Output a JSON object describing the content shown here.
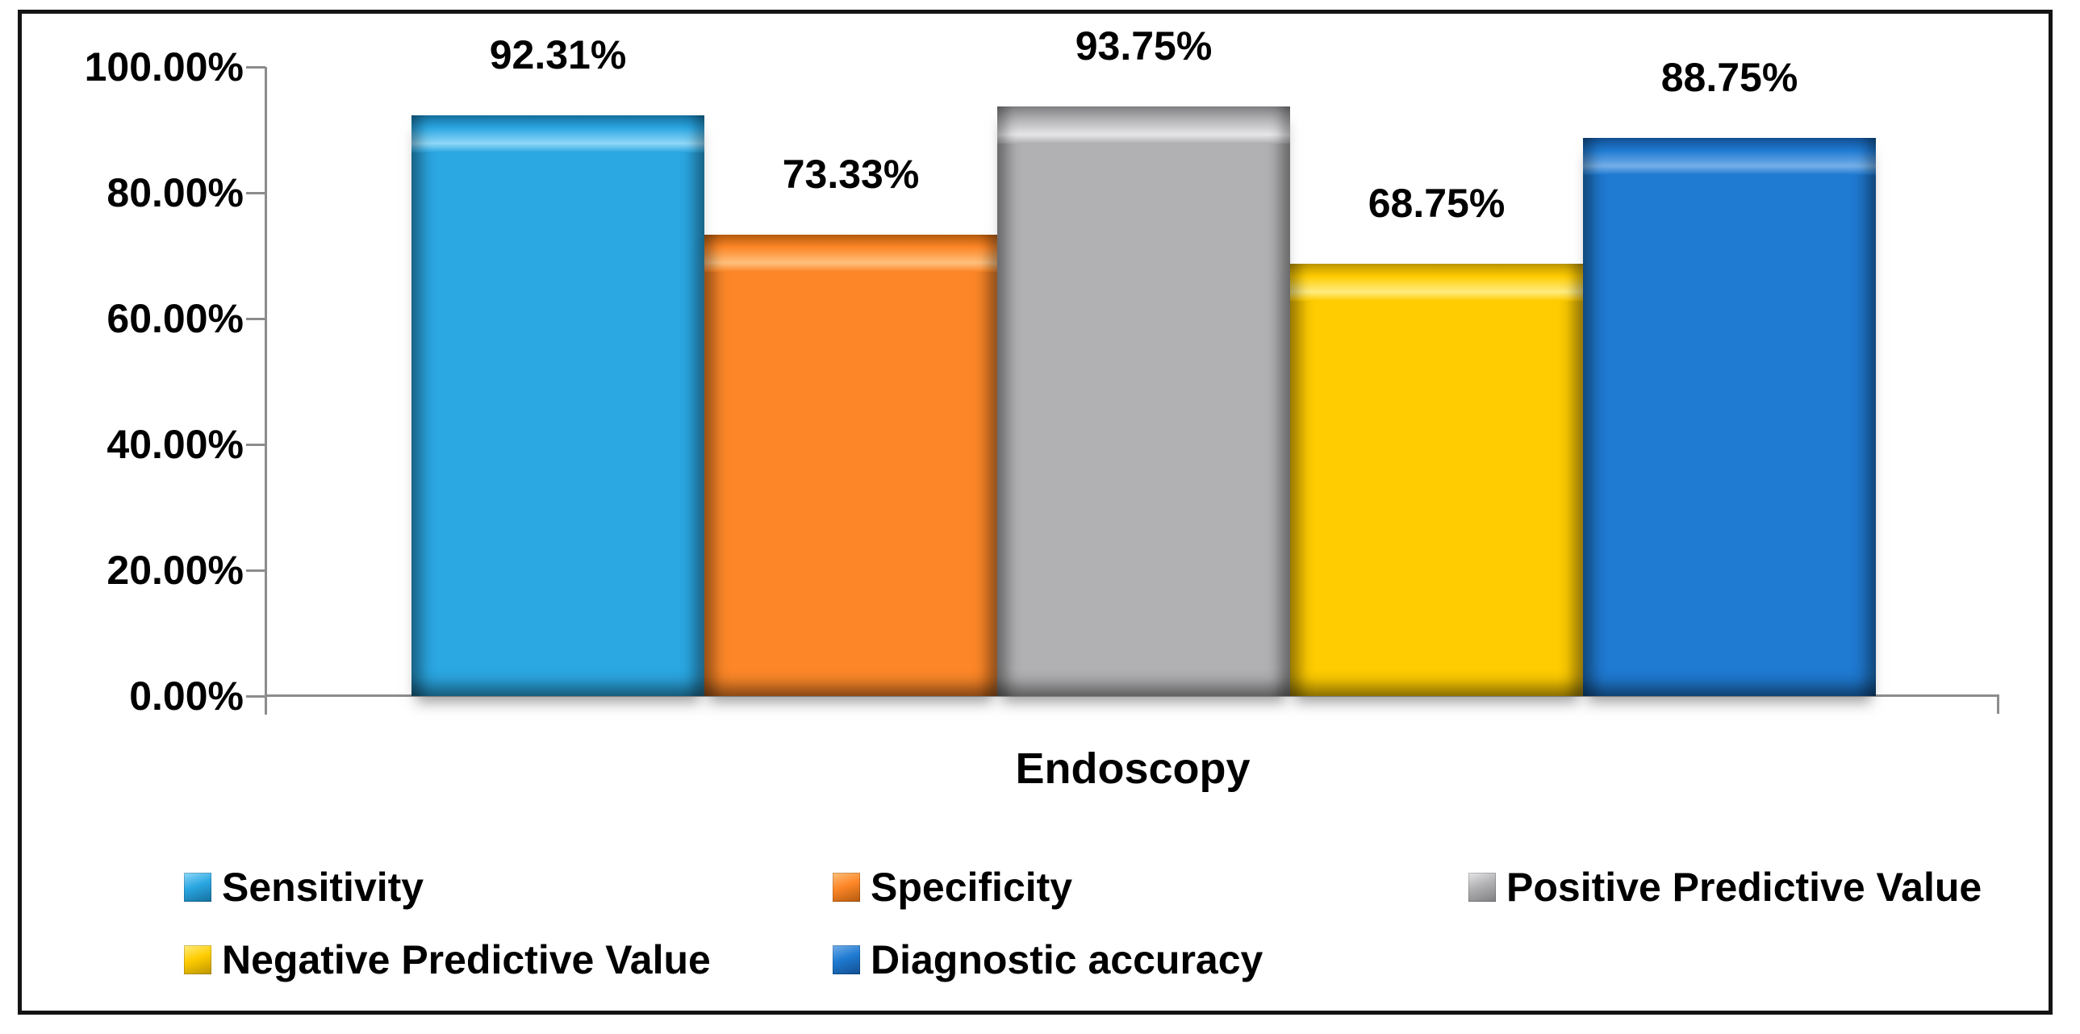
{
  "chart_data": {
    "type": "bar",
    "categories": [
      "Endoscopy"
    ],
    "series": [
      {
        "name": "Sensitivity",
        "value": 92.31,
        "label": "92.31%",
        "color": "#2BA7E2",
        "dark": "#156F9E",
        "highlight": "#8FD8F8"
      },
      {
        "name": "Specificity",
        "value": 73.33,
        "label": "73.33%",
        "color": "#FD8728",
        "dark": "#B55A0E",
        "highlight": "#FFC07C"
      },
      {
        "name": "Positive Predictive Value",
        "value": 93.75,
        "label": "93.75%",
        "color": "#B1B1B3",
        "dark": "#7F7F82",
        "highlight": "#E6E6E8"
      },
      {
        "name": "Negative Predictive Value",
        "value": 68.75,
        "label": "68.75%",
        "color": "#FFCC01",
        "dark": "#BC9600",
        "highlight": "#FFEC80"
      },
      {
        "name": "Diagnostic accuracy",
        "value": 88.75,
        "label": "88.75%",
        "color": "#1F7AD2",
        "dark": "#124F90",
        "highlight": "#74AFE8"
      }
    ],
    "title": "",
    "xlabel": "Endoscopy",
    "ylabel": "",
    "ylim": [
      0,
      100
    ],
    "ytick_labels": [
      "100.00%",
      "80.00%",
      "60.00%",
      "40.00%",
      "20.00%",
      "0.00%"
    ],
    "grid": false,
    "legend_position": "bottom",
    "legend_rows": [
      [
        "Sensitivity",
        "Specificity",
        "Positive Predictive Value"
      ],
      [
        "Negative Predictive Value",
        "Diagnostic accuracy"
      ]
    ]
  },
  "colors": {
    "axis": "#8C8C8C",
    "text": "#000000",
    "border": "#141414",
    "background": "#FFFFFF"
  }
}
